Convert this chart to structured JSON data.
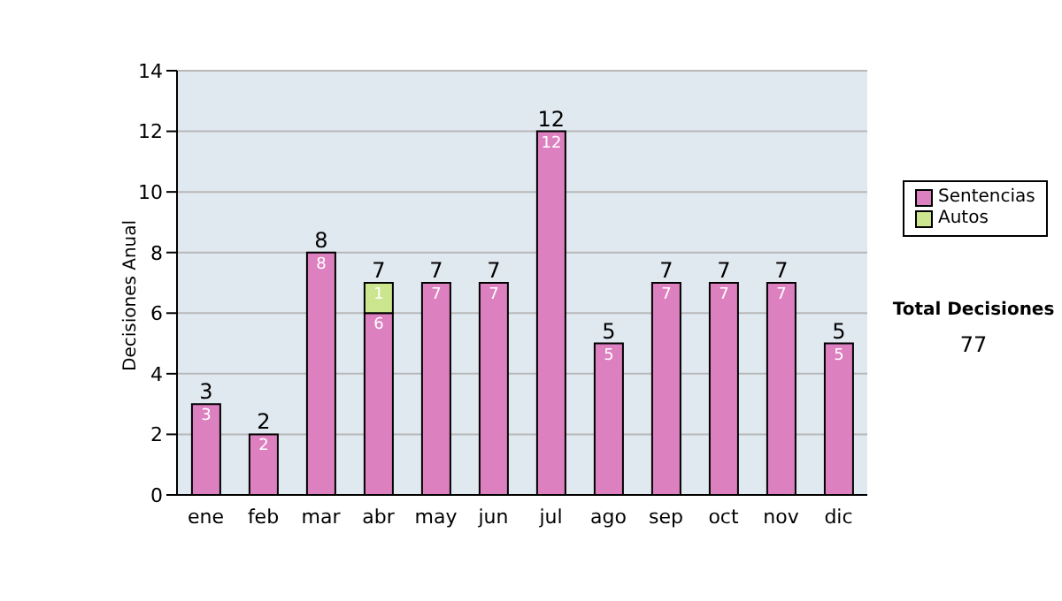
{
  "chart_data": {
    "type": "bar",
    "stacked": true,
    "ylabel": "Decisiones Anual",
    "categories": [
      "ene",
      "feb",
      "mar",
      "abr",
      "may",
      "jun",
      "jul",
      "ago",
      "sep",
      "oct",
      "nov",
      "dic"
    ],
    "series": [
      {
        "name": "Sentencias",
        "color": "#dd80c0",
        "values": [
          3,
          2,
          8,
          6,
          7,
          7,
          12,
          5,
          7,
          7,
          7,
          5
        ]
      },
      {
        "name": "Autos",
        "color": "#cce690",
        "values": [
          null,
          null,
          null,
          1,
          null,
          null,
          null,
          null,
          null,
          null,
          null,
          null
        ]
      }
    ],
    "ylim": [
      0,
      14
    ],
    "yticks": [
      0,
      2,
      4,
      6,
      8,
      10,
      12,
      14
    ],
    "grid": "y",
    "legend": "right",
    "data_labels": true,
    "totals": [
      "3",
      "2",
      "8",
      "7",
      "7",
      "7",
      "12",
      "5",
      "7",
      "7",
      "7",
      "5"
    ],
    "annotations": [
      "Total Decisiones",
      "77"
    ]
  }
}
